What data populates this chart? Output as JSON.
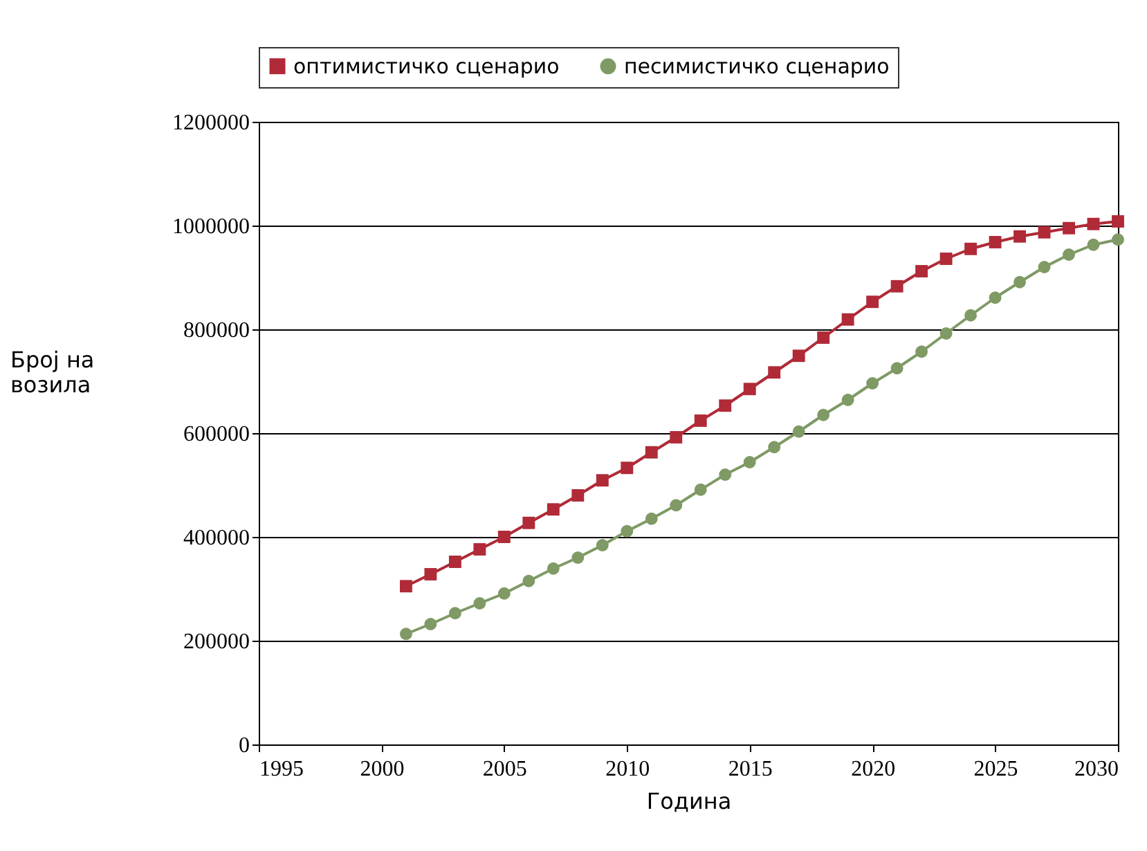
{
  "chart_data": {
    "type": "line",
    "xlabel": "Година",
    "ylabel": "Број на возила",
    "x": [
      2001,
      2002,
      2003,
      2004,
      2005,
      2006,
      2007,
      2008,
      2009,
      2010,
      2011,
      2012,
      2013,
      2014,
      2015,
      2016,
      2017,
      2018,
      2019,
      2020,
      2021,
      2022,
      2023,
      2024,
      2025,
      2026,
      2027,
      2028,
      2029,
      2030
    ],
    "series": [
      {
        "name": "оптимистичко сценарио",
        "color": "#b02a37",
        "marker": "square",
        "values": [
          305000,
          328000,
          352000,
          376000,
          400000,
          427000,
          453000,
          480000,
          509000,
          533000,
          563000,
          592000,
          624000,
          653000,
          685000,
          717000,
          749000,
          784000,
          819000,
          853000,
          883000,
          912000,
          936000,
          955000,
          968000,
          979000,
          987000,
          995000,
          1003000,
          1008000
        ]
      },
      {
        "name": "песимистичко сценарио",
        "color": "#7f9a65",
        "marker": "circle",
        "values": [
          213000,
          232000,
          253000,
          272000,
          291000,
          315000,
          339000,
          360000,
          384000,
          411000,
          435000,
          461000,
          491000,
          520000,
          544000,
          573000,
          603000,
          635000,
          664000,
          696000,
          725000,
          757000,
          792000,
          827000,
          861000,
          891000,
          920000,
          944000,
          963000,
          973000
        ]
      }
    ],
    "xlim": [
      1995,
      2030
    ],
    "xticks": [
      1995,
      2000,
      2005,
      2010,
      2015,
      2020,
      2025,
      2030
    ],
    "ylim": [
      0,
      1200000
    ],
    "yticks": [
      0,
      200000,
      400000,
      600000,
      800000,
      1000000,
      1200000
    ],
    "grid": "y",
    "legend": "top"
  }
}
